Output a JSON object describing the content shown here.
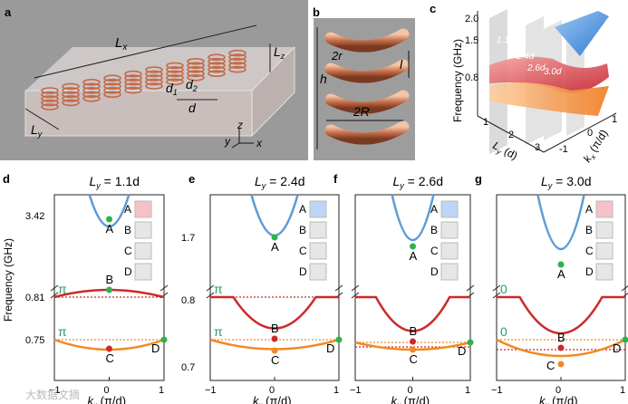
{
  "panels": {
    "a": {
      "label": "a",
      "Lx": "L",
      "Lx_sub": "x",
      "Lz": "L",
      "Lz_sub": "z",
      "Ly": "L",
      "Ly_sub": "y",
      "d1": "d",
      "d1_sub": "1",
      "d2": "d",
      "d2_sub": "2",
      "d": "d",
      "axes": {
        "y": "y",
        "z": "z",
        "x": "x"
      }
    },
    "b": {
      "label": "b",
      "r": "2r",
      "l": "l",
      "h": "h",
      "R": "2R"
    },
    "c": {
      "label": "c",
      "ylabel": "Frequency (GHz)",
      "yticks": [
        "2.0",
        "1.5",
        "0.8"
      ],
      "xlabel_pre": "L",
      "xlabel_sub": "y",
      "xlabel_post": " (d)",
      "xticks": [
        "1",
        "2",
        "3"
      ],
      "klabel_pre": "k",
      "klabel_sub": "x",
      "klabel_post": " (π/d)",
      "kticks": [
        "1",
        "0",
        "-1"
      ],
      "planes": [
        "1.1d",
        "2.4d",
        "2.6d",
        "3.0d"
      ],
      "colors": {
        "blue": "#4a90d9",
        "red": "#d8303a",
        "orange": "#f2832a"
      }
    }
  },
  "bands": {
    "common": {
      "xlabel_pre": "k",
      "xlabel_sub": "x",
      "xlabel_post": " (π/d)",
      "xticks": [
        "−1",
        "0",
        "1"
      ],
      "inset_labels": [
        "A",
        "B",
        "C",
        "D"
      ]
    },
    "d": {
      "label": "d",
      "title_pre": "L",
      "title_sub": "y",
      "title_post": " = 1.1d",
      "ylabel": "Frequency (GHz)",
      "yticks": [
        "3.42",
        "0.81",
        "0.75"
      ],
      "phase_top": "π",
      "phase_bot": "π",
      "points": {
        "A": "A",
        "B": "B",
        "C": "C",
        "D": "D"
      }
    },
    "e": {
      "label": "e",
      "title_pre": "L",
      "title_sub": "y",
      "title_post": " = 2.4d",
      "yticks": [
        "1.7",
        "0.8",
        "0.7"
      ],
      "phase_top": "π",
      "phase_bot": "π",
      "points": {
        "A": "A",
        "B": "B",
        "C": "C",
        "D": "D"
      }
    },
    "f": {
      "label": "f",
      "title_pre": "L",
      "title_sub": "y",
      "title_post": " = 2.6d",
      "points": {
        "A": "A",
        "B": "B",
        "C": "C",
        "D": "D"
      }
    },
    "g": {
      "label": "g",
      "title_pre": "L",
      "title_sub": "y",
      "title_post": " = 3.0d",
      "phase_top": "0",
      "phase_bot": "0",
      "points": {
        "A": "A",
        "B": "B",
        "C": "C",
        "D": "D"
      }
    }
  },
  "watermark": "大数据文摘",
  "colors": {
    "blue": "#5b9bd5",
    "red": "#cc2a2a",
    "orange": "#f08a24",
    "green": "#22a060",
    "dot_green": "#2db34a"
  }
}
